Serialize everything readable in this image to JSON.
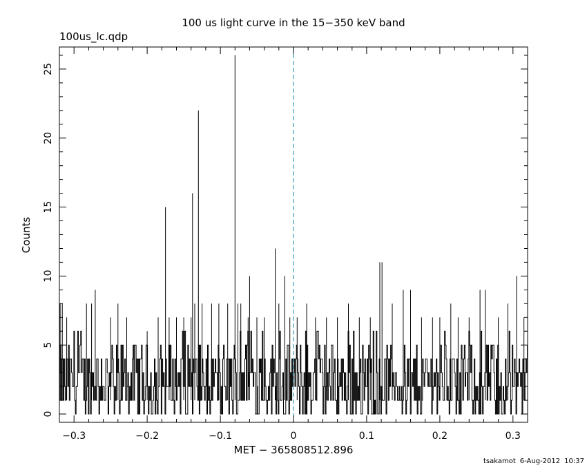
{
  "chart_data": {
    "type": "line",
    "title": "100 us light curve in the 15−350 keV band",
    "file_label": "100us_lc.qdp",
    "xlabel": "MET − 365808512.896",
    "ylabel": "Counts",
    "xlim": [
      -0.32,
      0.32
    ],
    "ylim": [
      -0.6,
      26.6
    ],
    "x_ticks": [
      -0.3,
      -0.2,
      -0.1,
      0,
      0.1,
      0.2,
      0.3
    ],
    "x_tick_labels": [
      "−0.3",
      "−0.2",
      "−0.1",
      "0",
      "0.1",
      "0.2",
      "0.3"
    ],
    "y_ticks": [
      0,
      5,
      10,
      15,
      20,
      25
    ],
    "y_tick_labels": [
      "0",
      "5",
      "10",
      "15",
      "20",
      "25"
    ],
    "bin_width": 0.0001,
    "trigger_line": {
      "x": 0,
      "style": "dashed",
      "color": "#2aa0b0"
    },
    "baseline_range": [
      0,
      5
    ],
    "peaks": [
      {
        "x": -0.319,
        "y": 8
      },
      {
        "x": -0.316,
        "y": 8
      },
      {
        "x": -0.31,
        "y": 7
      },
      {
        "x": -0.283,
        "y": 8
      },
      {
        "x": -0.276,
        "y": 8
      },
      {
        "x": -0.271,
        "y": 9
      },
      {
        "x": -0.25,
        "y": 7
      },
      {
        "x": -0.24,
        "y": 8
      },
      {
        "x": -0.228,
        "y": 7
      },
      {
        "x": -0.2,
        "y": 6
      },
      {
        "x": -0.185,
        "y": 7
      },
      {
        "x": -0.175,
        "y": 15
      },
      {
        "x": -0.17,
        "y": 7
      },
      {
        "x": -0.16,
        "y": 7
      },
      {
        "x": -0.15,
        "y": 7
      },
      {
        "x": -0.14,
        "y": 7
      },
      {
        "x": -0.138,
        "y": 16
      },
      {
        "x": -0.135,
        "y": 8
      },
      {
        "x": -0.13,
        "y": 22
      },
      {
        "x": -0.125,
        "y": 8
      },
      {
        "x": -0.112,
        "y": 8
      },
      {
        "x": -0.102,
        "y": 8
      },
      {
        "x": -0.09,
        "y": 8
      },
      {
        "x": -0.08,
        "y": 26
      },
      {
        "x": -0.076,
        "y": 8
      },
      {
        "x": -0.072,
        "y": 8
      },
      {
        "x": -0.062,
        "y": 7
      },
      {
        "x": -0.06,
        "y": 10
      },
      {
        "x": -0.05,
        "y": 7
      },
      {
        "x": -0.04,
        "y": 7
      },
      {
        "x": -0.025,
        "y": 12
      },
      {
        "x": -0.02,
        "y": 8
      },
      {
        "x": -0.012,
        "y": 10
      },
      {
        "x": -0.005,
        "y": 7
      },
      {
        "x": 0.005,
        "y": 7
      },
      {
        "x": 0.018,
        "y": 8
      },
      {
        "x": 0.03,
        "y": 7
      },
      {
        "x": 0.045,
        "y": 7
      },
      {
        "x": 0.06,
        "y": 7
      },
      {
        "x": 0.075,
        "y": 8
      },
      {
        "x": 0.09,
        "y": 7
      },
      {
        "x": 0.105,
        "y": 7
      },
      {
        "x": 0.118,
        "y": 11
      },
      {
        "x": 0.121,
        "y": 11
      },
      {
        "x": 0.135,
        "y": 8
      },
      {
        "x": 0.15,
        "y": 9
      },
      {
        "x": 0.16,
        "y": 9
      },
      {
        "x": 0.175,
        "y": 7
      },
      {
        "x": 0.19,
        "y": 7
      },
      {
        "x": 0.2,
        "y": 7
      },
      {
        "x": 0.215,
        "y": 8
      },
      {
        "x": 0.225,
        "y": 7
      },
      {
        "x": 0.24,
        "y": 7
      },
      {
        "x": 0.255,
        "y": 9
      },
      {
        "x": 0.262,
        "y": 9
      },
      {
        "x": 0.28,
        "y": 7
      },
      {
        "x": 0.293,
        "y": 8
      },
      {
        "x": 0.305,
        "y": 10
      },
      {
        "x": 0.315,
        "y": 7
      }
    ],
    "grid": false,
    "legend": "none"
  },
  "footer": {
    "user": "tsakamot",
    "date": "6-Aug-2012",
    "time": "10:37"
  }
}
